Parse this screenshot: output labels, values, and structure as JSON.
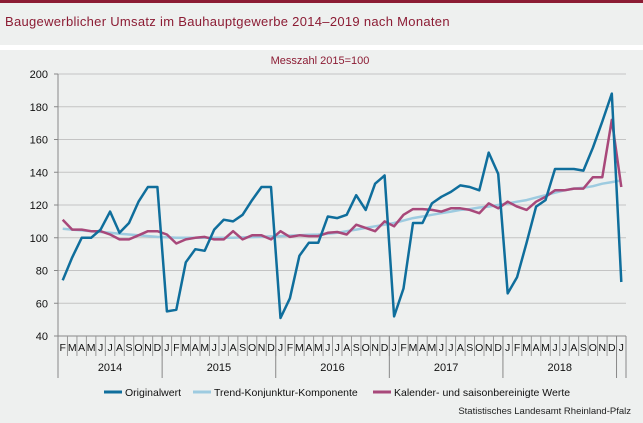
{
  "header": {
    "title": "Baugewerblicher Umsatz im Bauhauptgewerbe 2014–2019 nach Monaten"
  },
  "footer": {
    "source": "Statistisches Landesamt Rheinland-Pfalz"
  },
  "colors": {
    "original": "#0f6e9c",
    "trend": "#9dcbe0",
    "adjusted": "#a8487a",
    "title": "#8c1c34"
  },
  "chart_data": {
    "type": "line",
    "title": "Messzahl 2015=100",
    "xlabel": "",
    "ylabel": "",
    "ylim": [
      40,
      200
    ],
    "yticks": [
      40,
      60,
      80,
      100,
      120,
      140,
      160,
      180,
      200
    ],
    "grid": true,
    "legend_position": "bottom",
    "months": [
      "F",
      "M",
      "A",
      "M",
      "J",
      "J",
      "A",
      "S",
      "O",
      "N",
      "D",
      "J",
      "F",
      "M",
      "A",
      "M",
      "J",
      "J",
      "A",
      "S",
      "O",
      "N",
      "D",
      "J",
      "F",
      "M",
      "A",
      "M",
      "J",
      "J",
      "A",
      "S",
      "O",
      "N",
      "D",
      "J",
      "F",
      "M",
      "A",
      "M",
      "J",
      "J",
      "A",
      "S",
      "O",
      "N",
      "D",
      "J",
      "F",
      "M",
      "A",
      "M",
      "J",
      "J",
      "A",
      "S",
      "O",
      "N",
      "D",
      "J"
    ],
    "years": [
      {
        "label": "2014",
        "months": 11
      },
      {
        "label": "2015",
        "months": 12
      },
      {
        "label": "2016",
        "months": 12
      },
      {
        "label": "2017",
        "months": 12
      },
      {
        "label": "2018",
        "months": 12
      },
      {
        "label": "",
        "months": 1
      }
    ],
    "series": [
      {
        "name": "Originalwert",
        "key": "original",
        "values": [
          74,
          88,
          100,
          100,
          105,
          116,
          103,
          109,
          122,
          131,
          131,
          55,
          56,
          85,
          93,
          92,
          105,
          111,
          110,
          114,
          123,
          131,
          131,
          51,
          63,
          89,
          97,
          97,
          113,
          112,
          114,
          126,
          117,
          133,
          138,
          52,
          69,
          109,
          109,
          121,
          125,
          128,
          132,
          131,
          129,
          152,
          139,
          66,
          76,
          97,
          119,
          123,
          142,
          142,
          142,
          141,
          155,
          171,
          188,
          73
        ]
      },
      {
        "name": "Trend-Konjunktur-Komponente",
        "key": "trend",
        "values": [
          105.5,
          105,
          104.5,
          104,
          103.5,
          103,
          102.5,
          102,
          101.5,
          101,
          100.5,
          100.3,
          100,
          100,
          100,
          100,
          100,
          100,
          100,
          100.2,
          100.4,
          100.6,
          100.8,
          101,
          101.3,
          101.5,
          101.8,
          102,
          102.5,
          103,
          104,
          105,
          106,
          107,
          108,
          109,
          110.5,
          112,
          113,
          114,
          115,
          116,
          117,
          117.5,
          118.5,
          119,
          120,
          121,
          122,
          123,
          124.5,
          126,
          127.5,
          129,
          130,
          130.5,
          131.5,
          133,
          134,
          135
        ]
      },
      {
        "name": "Kalender- und saisonbereinigte Werte",
        "key": "adjusted",
        "values": [
          111,
          105,
          105,
          104,
          104,
          102,
          99,
          99,
          101.5,
          104,
          104,
          102,
          96.5,
          99,
          100,
          100.5,
          99,
          99,
          104,
          99,
          101.5,
          101.5,
          99,
          104,
          100.5,
          101.5,
          101,
          101,
          103,
          103.5,
          102,
          108,
          106,
          104,
          110,
          107,
          114,
          117.5,
          117.5,
          117,
          116,
          118,
          118,
          117,
          115,
          121,
          118,
          122,
          119,
          117,
          122,
          125,
          129,
          129,
          130,
          130,
          137,
          137,
          172,
          131
        ]
      }
    ]
  }
}
